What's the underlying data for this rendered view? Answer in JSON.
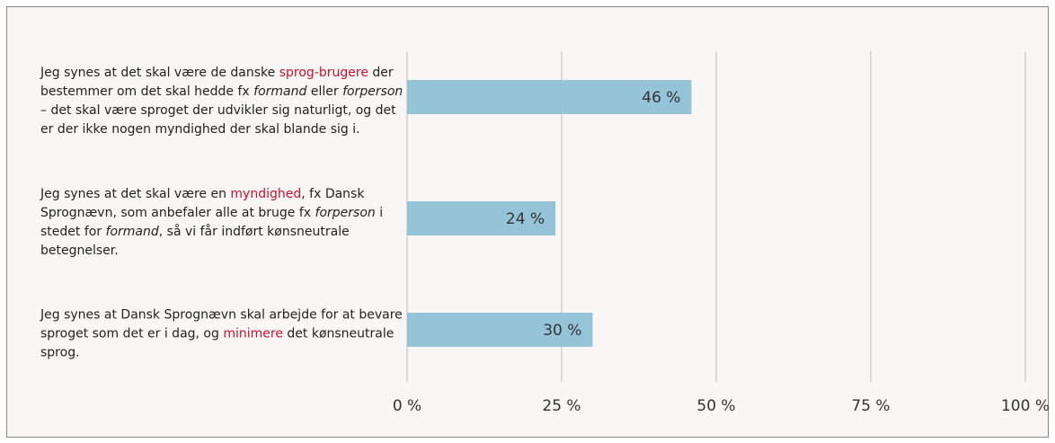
{
  "chart_data": {
    "type": "barh",
    "categories": [
      [
        {
          "text": "Jeg synes at det skal være de danske "
        },
        {
          "text": "sprog-brugere",
          "style": "highlight"
        },
        {
          "text": " der bestemmer om det skal hedde fx "
        },
        {
          "text": "formand",
          "style": "italic"
        },
        {
          "text": " eller "
        },
        {
          "text": "forperson",
          "style": "italic"
        },
        {
          "text": " – det skal være sproget der udvikler sig naturligt, og det er der ikke nogen myndighed der skal blande sig i."
        }
      ],
      [
        {
          "text": "Jeg synes at det skal være en "
        },
        {
          "text": "myndighed",
          "style": "highlight"
        },
        {
          "text": ", fx Dansk Sprognævn, som anbefaler alle at bruge fx "
        },
        {
          "text": "forperson",
          "style": "italic"
        },
        {
          "text": " i stedet for "
        },
        {
          "text": "formand",
          "style": "italic"
        },
        {
          "text": ", så vi får indført kønsneutrale betegnelser."
        }
      ],
      [
        {
          "text": "Jeg synes at Dansk Sprognævn skal arbejde for at bevare sproget som det er i dag, og "
        },
        {
          "text": "minimere",
          "style": "highlight"
        },
        {
          "text": " det kønsneutrale sprog."
        }
      ]
    ],
    "values": [
      46,
      24,
      30
    ],
    "value_labels": [
      "46 %",
      "24 %",
      "30 %"
    ],
    "color": "#95c3d8",
    "highlight_color": "#c8102e",
    "xlim": [
      0,
      100
    ],
    "xticks": [
      {
        "value": 0,
        "label": "0 %"
      },
      {
        "value": 25,
        "label": "25 %"
      },
      {
        "value": 50,
        "label": "50 %"
      },
      {
        "value": 75,
        "label": "75 %"
      },
      {
        "value": 100,
        "label": "100 %"
      }
    ],
    "grid": true
  }
}
